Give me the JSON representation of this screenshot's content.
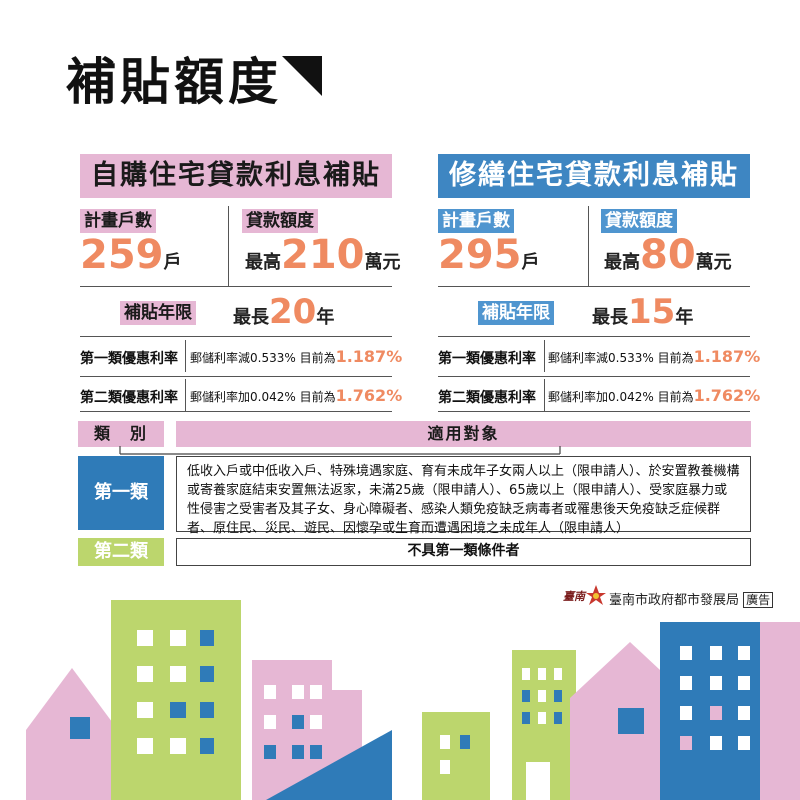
{
  "title": "補貼額度",
  "left": {
    "heading": "自購住宅貸款利息補貼",
    "households_label": "計畫戶數",
    "households_value": "259",
    "households_unit": "戶",
    "loan_label": "貸款額度",
    "loan_prefix": "最高",
    "loan_value": "210",
    "loan_unit": "萬元",
    "years_label": "補貼年限",
    "years_prefix": "最長",
    "years_value": "20",
    "years_unit": "年",
    "rate1_label": "第一類優惠利率",
    "rate1_text": "郵儲利率減0.533% 目前為",
    "rate1_value": "1.187%",
    "rate2_label": "第二類優惠利率",
    "rate2_text": "郵儲利率加0.042% 目前為",
    "rate2_value": "1.762%"
  },
  "right": {
    "heading": "修繕住宅貸款利息補貼",
    "households_label": "計畫戶數",
    "households_value": "295",
    "households_unit": "戶",
    "loan_label": "貸款額度",
    "loan_prefix": "最高",
    "loan_value": "80",
    "loan_unit": "萬元",
    "years_label": "補貼年限",
    "years_prefix": "最長",
    "years_value": "15",
    "years_unit": "年",
    "rate1_label": "第一類優惠利率",
    "rate1_text": "郵儲利率減0.533% 目前為",
    "rate1_value": "1.187%",
    "rate2_label": "第二類優惠利率",
    "rate2_text": "郵儲利率加0.042% 目前為",
    "rate2_value": "1.762%"
  },
  "table": {
    "col_category": "類　別",
    "col_target": "適用對象",
    "class1_label": "第一類",
    "class1_desc": "低收入戶或中低收入戶、特殊境遇家庭、育有未成年子女兩人以上（限申請人）、於安置教養機構或寄養家庭結束安置無法返家，未滿25歲（限申請人）、65歲以上（限申請人）、受家庭暴力或性侵害之受害者及其子女、身心障礙者、感染人類免疫缺乏病毒者或罹患後天免疫缺乏症候群者、原住民、災民、遊民、因懷孕或生育而遭遇困境之未成年人（限申請人）",
    "class2_label": "第二類",
    "class2_desc": "不具第一類條件者"
  },
  "footer": {
    "agency": "臺南市政府都市發展局",
    "ad": "廣告",
    "logo_text": "臺南"
  },
  "colors": {
    "pink": "#e6b7d4",
    "blue": "#2f7bb8",
    "green": "#bcd66d",
    "orange": "#ef8a61"
  }
}
